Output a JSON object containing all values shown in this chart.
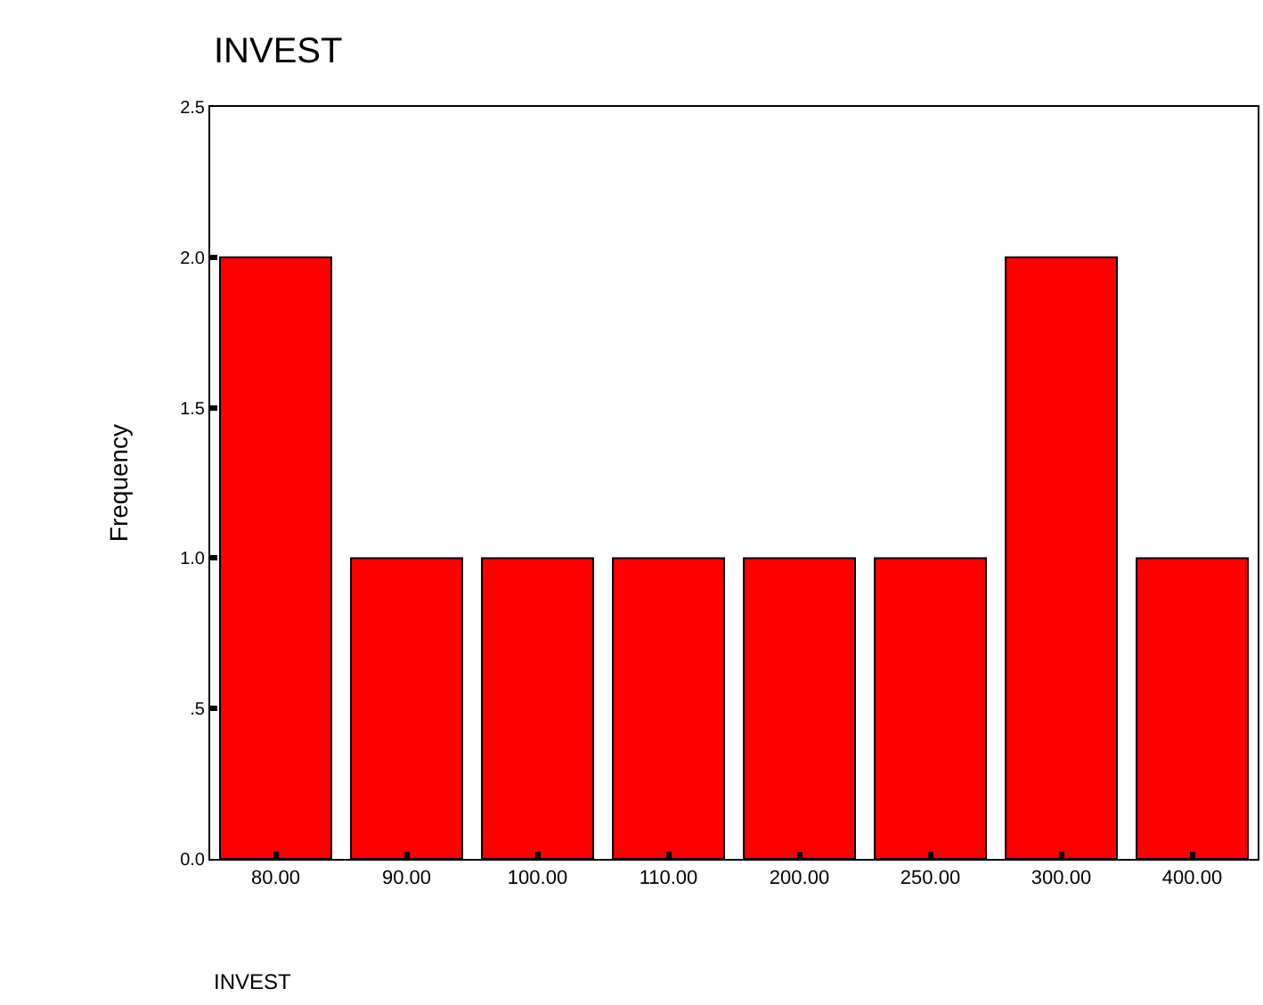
{
  "chart_data": {
    "type": "bar",
    "title": "INVEST",
    "xlabel": "INVEST",
    "ylabel": "Frequency",
    "categories": [
      "80.00",
      "90.00",
      "100.00",
      "110.00",
      "200.00",
      "250.00",
      "300.00",
      "400.00"
    ],
    "values": [
      2,
      1,
      1,
      1,
      1,
      1,
      2,
      1
    ],
    "color": "#ff0000",
    "ylim": [
      0,
      2.5
    ],
    "yticks": [
      {
        "value": 0,
        "label": "0.0"
      },
      {
        "value": 0.5,
        "label": ".5"
      },
      {
        "value": 1,
        "label": "1.0"
      },
      {
        "value": 1.5,
        "label": "1.5"
      },
      {
        "value": 2,
        "label": "2.0"
      },
      {
        "value": 2.5,
        "label": "2.5"
      }
    ],
    "tick_labels": "xy"
  }
}
